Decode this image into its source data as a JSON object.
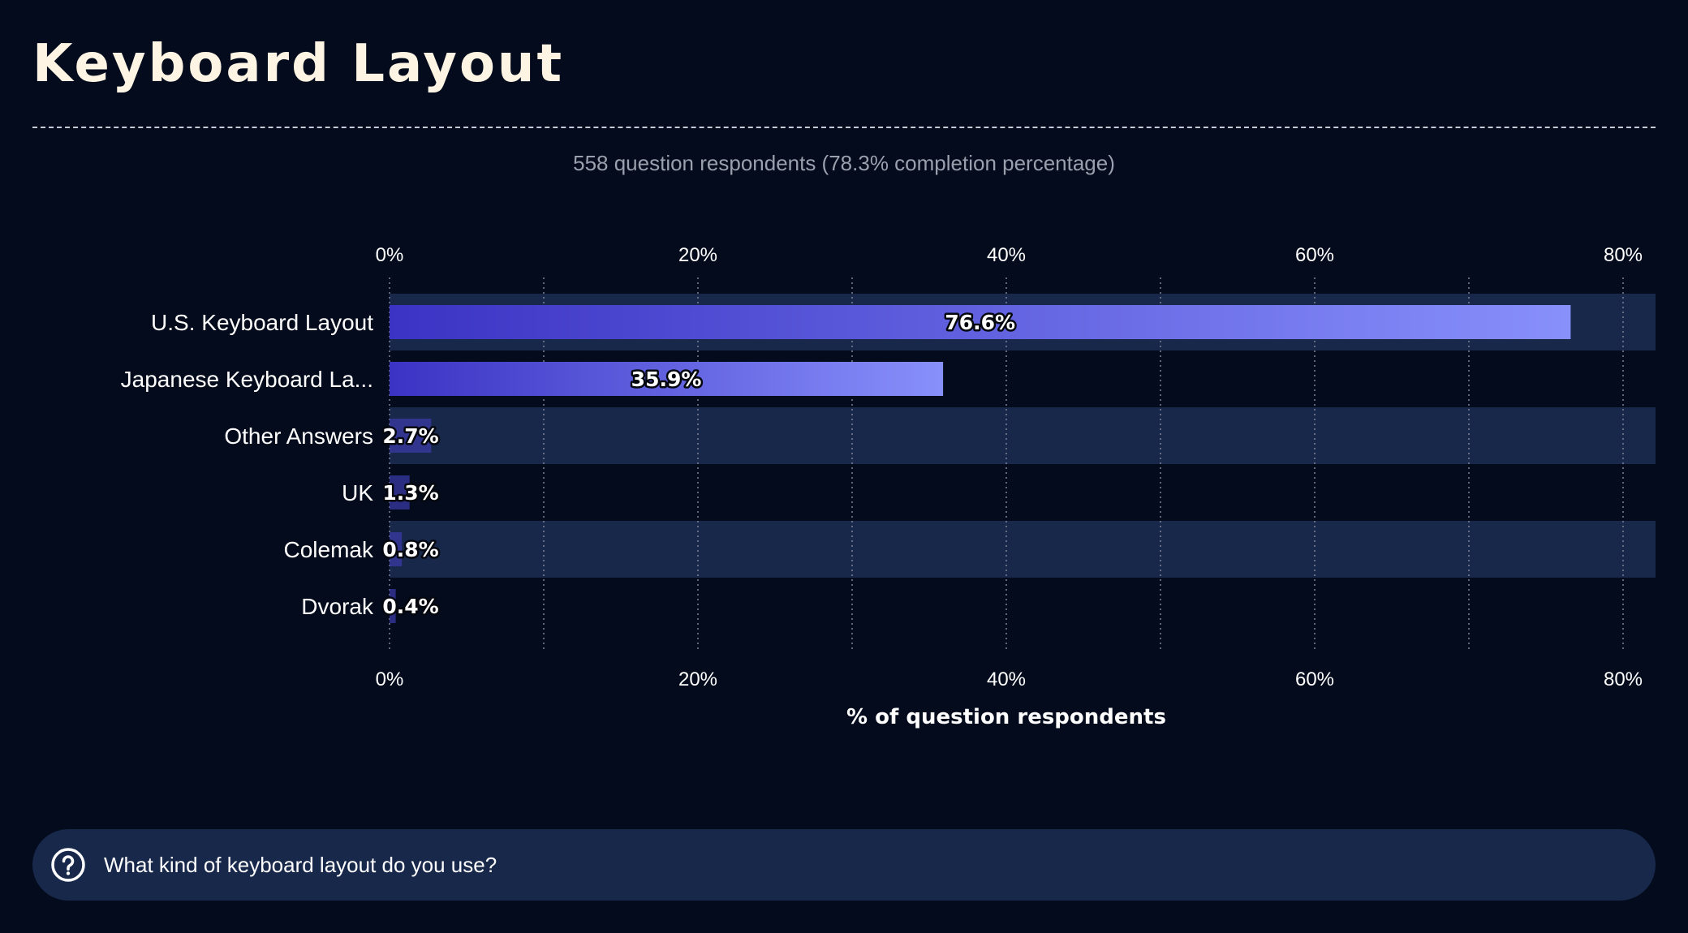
{
  "page": {
    "title": "Keyboard Layout",
    "subtitle": "558 question respondents (78.3% completion percentage)",
    "question": "What kind of keyboard layout do you use?",
    "question_icon": "question-circle-icon"
  },
  "colors": {
    "background": "#030b1c",
    "band": "#18284a",
    "bar_start": "#3b33c4",
    "bar_end": "#8890fb",
    "title": "#fdf4e3"
  },
  "chart_data": {
    "type": "bar",
    "orientation": "horizontal",
    "categories": [
      "U.S. Keyboard Layout",
      "Japanese Keyboard La...",
      "Other Answers",
      "UK",
      "Colemak",
      "Dvorak"
    ],
    "values": [
      76.6,
      35.9,
      2.7,
      1.3,
      0.8,
      0.4
    ],
    "value_labels": [
      "76.6%",
      "35.9%",
      "2.7%",
      "1.3%",
      "0.8%",
      "0.4%"
    ],
    "x_ticks": [
      "0%",
      "20%",
      "40%",
      "60%",
      "80%"
    ],
    "x_tick_values": [
      0,
      20,
      40,
      60,
      80
    ],
    "xlim": [
      0,
      82
    ],
    "xlabel": "% of question respondents",
    "grid": "vertical dotted, every 10%",
    "ticks_top_and_bottom": true
  }
}
